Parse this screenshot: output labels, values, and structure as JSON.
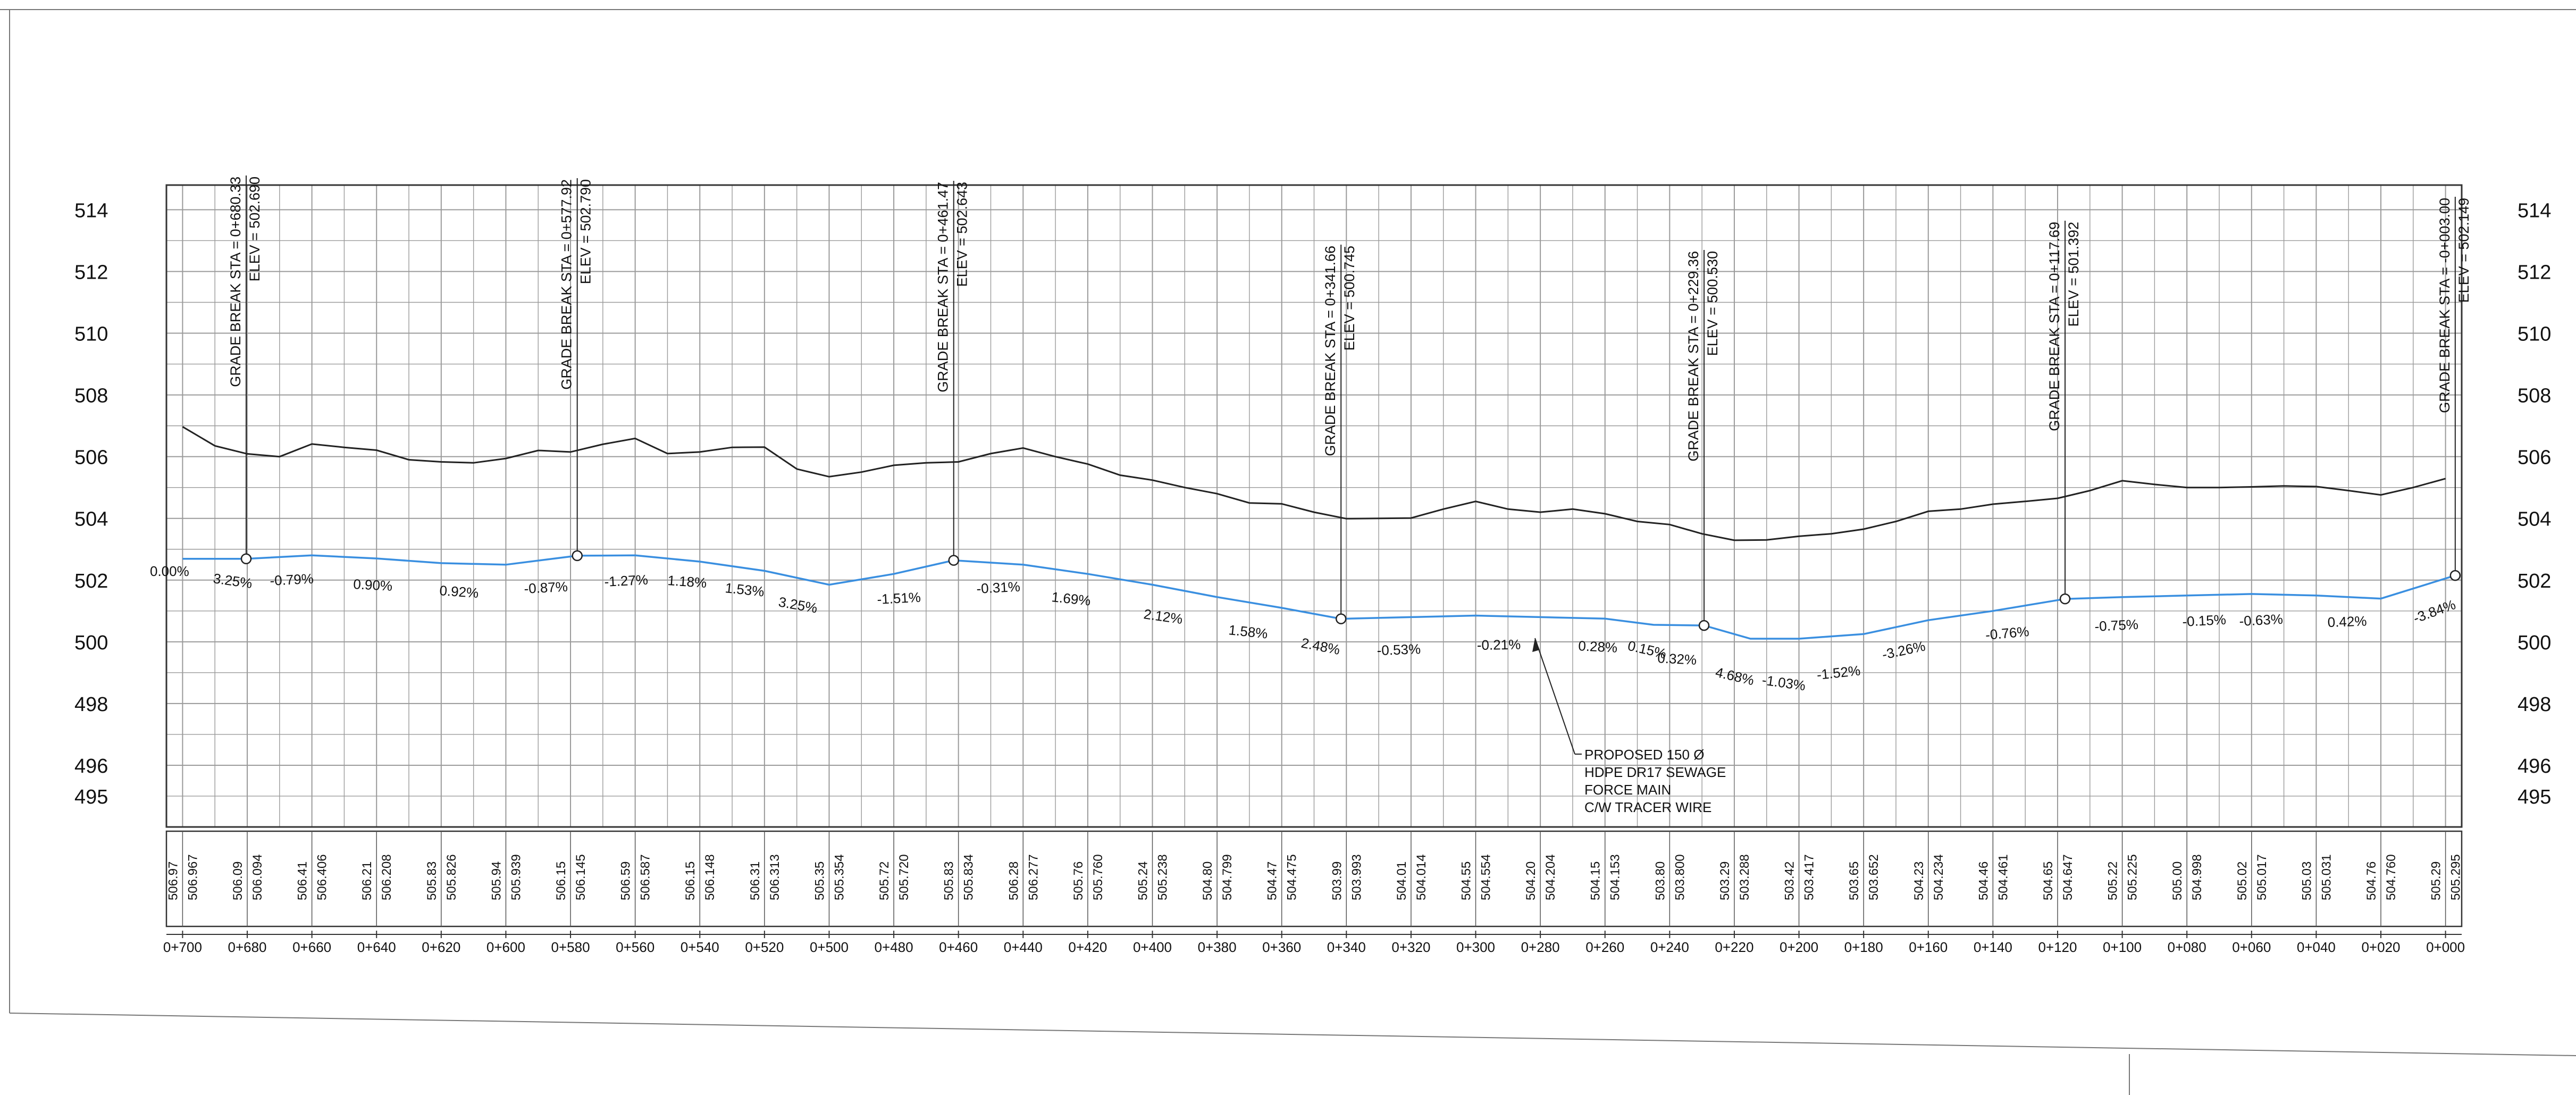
{
  "stations": [
    "0+700",
    "0+680",
    "0+660",
    "0+640",
    "0+620",
    "0+600",
    "0+580",
    "0+560",
    "0+540",
    "0+520",
    "0+500",
    "0+480",
    "0+460",
    "0+440",
    "0+420",
    "0+400",
    "0+380",
    "0+360",
    "0+340",
    "0+320",
    "0+300",
    "0+280",
    "0+260",
    "0+240",
    "0+220",
    "0+200",
    "0+180",
    "0+160",
    "0+140",
    "0+120",
    "0+100",
    "0+080",
    "0+060",
    "0+040",
    "0+020",
    "0+000"
  ],
  "y_ticks": [
    "514",
    "512",
    "510",
    "508",
    "506",
    "504",
    "502",
    "500",
    "498",
    "496",
    "495"
  ],
  "elevation_table": [
    {
      "left": "506.97",
      "right": "506.967"
    },
    {
      "left": "506.09",
      "right": "506.094"
    },
    {
      "left": "506.41",
      "right": "506.406"
    },
    {
      "left": "506.21",
      "right": "506.208"
    },
    {
      "left": "505.83",
      "right": "505.826"
    },
    {
      "left": "505.94",
      "right": "505.939"
    },
    {
      "left": "506.15",
      "right": "506.145"
    },
    {
      "left": "506.59",
      "right": "506.587"
    },
    {
      "left": "506.15",
      "right": "506.148"
    },
    {
      "left": "506.31",
      "right": "506.313"
    },
    {
      "left": "505.35",
      "right": "505.354"
    },
    {
      "left": "505.72",
      "right": "505.720"
    },
    {
      "left": "505.83",
      "right": "505.834"
    },
    {
      "left": "506.28",
      "right": "506.277"
    },
    {
      "left": "505.76",
      "right": "505.760"
    },
    {
      "left": "505.24",
      "right": "505.238"
    },
    {
      "left": "504.80",
      "right": "504.799"
    },
    {
      "left": "504.47",
      "right": "504.475"
    },
    {
      "left": "503.99",
      "right": "503.993"
    },
    {
      "left": "504.01",
      "right": "504.014"
    },
    {
      "left": "504.55",
      "right": "504.554"
    },
    {
      "left": "504.20",
      "right": "504.204"
    },
    {
      "left": "504.15",
      "right": "504.153"
    },
    {
      "left": "503.80",
      "right": "503.800"
    },
    {
      "left": "503.29",
      "right": "503.288"
    },
    {
      "left": "503.42",
      "right": "503.417"
    },
    {
      "left": "503.65",
      "right": "503.652"
    },
    {
      "left": "504.23",
      "right": "504.234"
    },
    {
      "left": "504.46",
      "right": "504.461"
    },
    {
      "left": "504.65",
      "right": "504.647"
    },
    {
      "left": "505.22",
      "right": "505.225"
    },
    {
      "left": "505.00",
      "right": "504.998"
    },
    {
      "left": "505.02",
      "right": "505.017"
    },
    {
      "left": "505.03",
      "right": "505.031"
    },
    {
      "left": "504.76",
      "right": "504.760"
    },
    {
      "left": "505.29",
      "right": "505.295"
    }
  ],
  "grade_breaks": [
    {
      "label": "GRADE BREAK STA = 0+680.33",
      "elev": "ELEV =  502.690"
    },
    {
      "label": "GRADE BREAK STA = 0+577.92",
      "elev": "ELEV =  502.790"
    },
    {
      "label": "GRADE BREAK STA = 0+461.47",
      "elev": "ELEV =  502.643"
    },
    {
      "label": "GRADE BREAK STA = 0+341.66",
      "elev": "ELEV =  500.745"
    },
    {
      "label": "GRADE BREAK STA = 0+229.36",
      "elev": "ELEV =  500.530"
    },
    {
      "label": "GRADE BREAK STA = 0+117.69",
      "elev": "ELEV =  501.392"
    },
    {
      "label": "GRADE BREAK STA = -0+003.00",
      "elev": "ELEV =  502.149"
    }
  ],
  "slopes": [
    "0.00%",
    "3.25%",
    "-0.79%",
    "0.90%",
    "0.92%",
    "-0.87%",
    "-1.27%",
    "1.18%",
    "1.53%",
    "3.25%",
    "-1.51%",
    "-0.31%",
    "1.69%",
    "2.12%",
    "1.58%",
    "2.48%",
    "-0.53%",
    "-0.21%",
    "0.28%",
    "0.15%",
    "0.32%",
    "4.68%",
    "-1.03%",
    "-1.52%",
    "-3.26%",
    "-0.76%",
    "-0.75%",
    "-0.15%",
    "-0.63%",
    "0.42%",
    "-3.84%"
  ],
  "callout": [
    "PROPOSED 150 Ø",
    "HDPE DR17 SEWAGE",
    "FORCE MAIN",
    "C/W TRACER WIRE"
  ],
  "chart_data": {
    "type": "line",
    "xlabel": "",
    "ylabel": "",
    "x_direction": "decreasing (0+700 at left, 0+000 at right)",
    "ylim": [
      495,
      515
    ],
    "grid": true,
    "series": [
      {
        "color": "#222222",
        "x_sta": [
          700,
          690,
          680,
          670,
          660,
          650,
          640,
          630,
          620,
          610,
          600,
          590,
          580,
          570,
          560,
          550,
          540,
          530,
          520,
          510,
          500,
          490,
          480,
          470,
          460,
          450,
          440,
          430,
          420,
          410,
          400,
          390,
          380,
          370,
          360,
          350,
          340,
          330,
          320,
          310,
          300,
          290,
          280,
          270,
          260,
          250,
          240,
          230,
          220,
          210,
          200,
          190,
          180,
          170,
          160,
          150,
          140,
          130,
          120,
          110,
          100,
          90,
          80,
          70,
          60,
          50,
          40,
          30,
          20,
          10,
          0
        ],
        "y": [
          506.97,
          506.35,
          506.09,
          506.0,
          506.41,
          506.3,
          506.21,
          505.9,
          505.83,
          505.8,
          505.94,
          506.2,
          506.15,
          506.4,
          506.59,
          506.1,
          506.15,
          506.3,
          506.31,
          505.6,
          505.35,
          505.5,
          505.72,
          505.8,
          505.83,
          506.1,
          506.28,
          506.0,
          505.76,
          505.4,
          505.24,
          505.0,
          504.8,
          504.5,
          504.47,
          504.2,
          503.99,
          504.0,
          504.01,
          504.3,
          504.55,
          504.3,
          504.2,
          504.3,
          504.15,
          503.9,
          503.8,
          503.5,
          503.29,
          503.3,
          503.42,
          503.5,
          503.65,
          503.9,
          504.23,
          504.3,
          504.46,
          504.55,
          504.65,
          504.9,
          505.22,
          505.1,
          505.0,
          505.0,
          505.02,
          505.05,
          505.03,
          504.9,
          504.76,
          505.0,
          505.29
        ]
      },
      {
        "color": "#3a8fe0",
        "x_sta": [
          700,
          680.33,
          660,
          640,
          620,
          600,
          577.92,
          560,
          540,
          520,
          500,
          480,
          461.47,
          440,
          420,
          400,
          380,
          360,
          341.66,
          320,
          300,
          280,
          260,
          245,
          229.36,
          215,
          200,
          180,
          160,
          140,
          117.69,
          100,
          80,
          60,
          40,
          20,
          -3.0
        ],
        "y": [
          502.69,
          502.69,
          502.8,
          502.7,
          502.55,
          502.5,
          502.79,
          502.8,
          502.6,
          502.3,
          501.85,
          502.2,
          502.64,
          502.5,
          502.2,
          501.85,
          501.45,
          501.1,
          500.745,
          500.8,
          500.85,
          500.8,
          500.75,
          500.55,
          500.53,
          500.1,
          500.1,
          500.25,
          500.7,
          501.0,
          501.39,
          501.45,
          501.5,
          501.55,
          501.5,
          501.4,
          502.149
        ]
      }
    ]
  }
}
